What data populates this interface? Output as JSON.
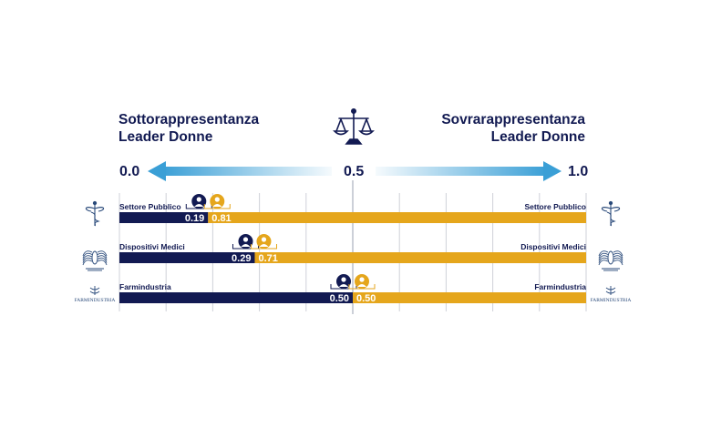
{
  "titles": {
    "left": [
      "Sottorappresentanza",
      "Leader Donne"
    ],
    "right": [
      "Sovrarappresentanza",
      "Leader Donne"
    ]
  },
  "axis_labels": {
    "min": "0.0",
    "mid": "0.5",
    "max": "1.0"
  },
  "colors": {
    "navy": "#121a52",
    "gold": "#e5a61c",
    "arrow": "#3a9fd6",
    "grid": "#cfd1d8"
  },
  "icons": {
    "center": "scales-of-justice-icon",
    "man": "male-doctor-icon",
    "woman": "female-doctor-icon"
  },
  "chart_data": {
    "type": "bar",
    "orientation": "horizontal",
    "stacked": true,
    "xlim": [
      0,
      1
    ],
    "categories": [
      "Settore Pubblico",
      "Dispositivi Medici",
      "Farmindustria"
    ],
    "series": [
      {
        "values": [
          0.19,
          0.29,
          0.5
        ],
        "labels": [
          "0.19",
          "0.29",
          "0.50"
        ],
        "color": "#121a52"
      },
      {
        "values": [
          0.81,
          0.71,
          0.5
        ],
        "labels": [
          "0.81",
          "0.71",
          "0.50"
        ],
        "color": "#e5a61c"
      }
    ],
    "row_logos": [
      "caduceus-logo",
      "confindustria-dispositivi-medici-logo",
      "farmindustria-logo"
    ],
    "logo_text": [
      "",
      "",
      "FARMINDUSTRIA"
    ],
    "grid": true
  }
}
